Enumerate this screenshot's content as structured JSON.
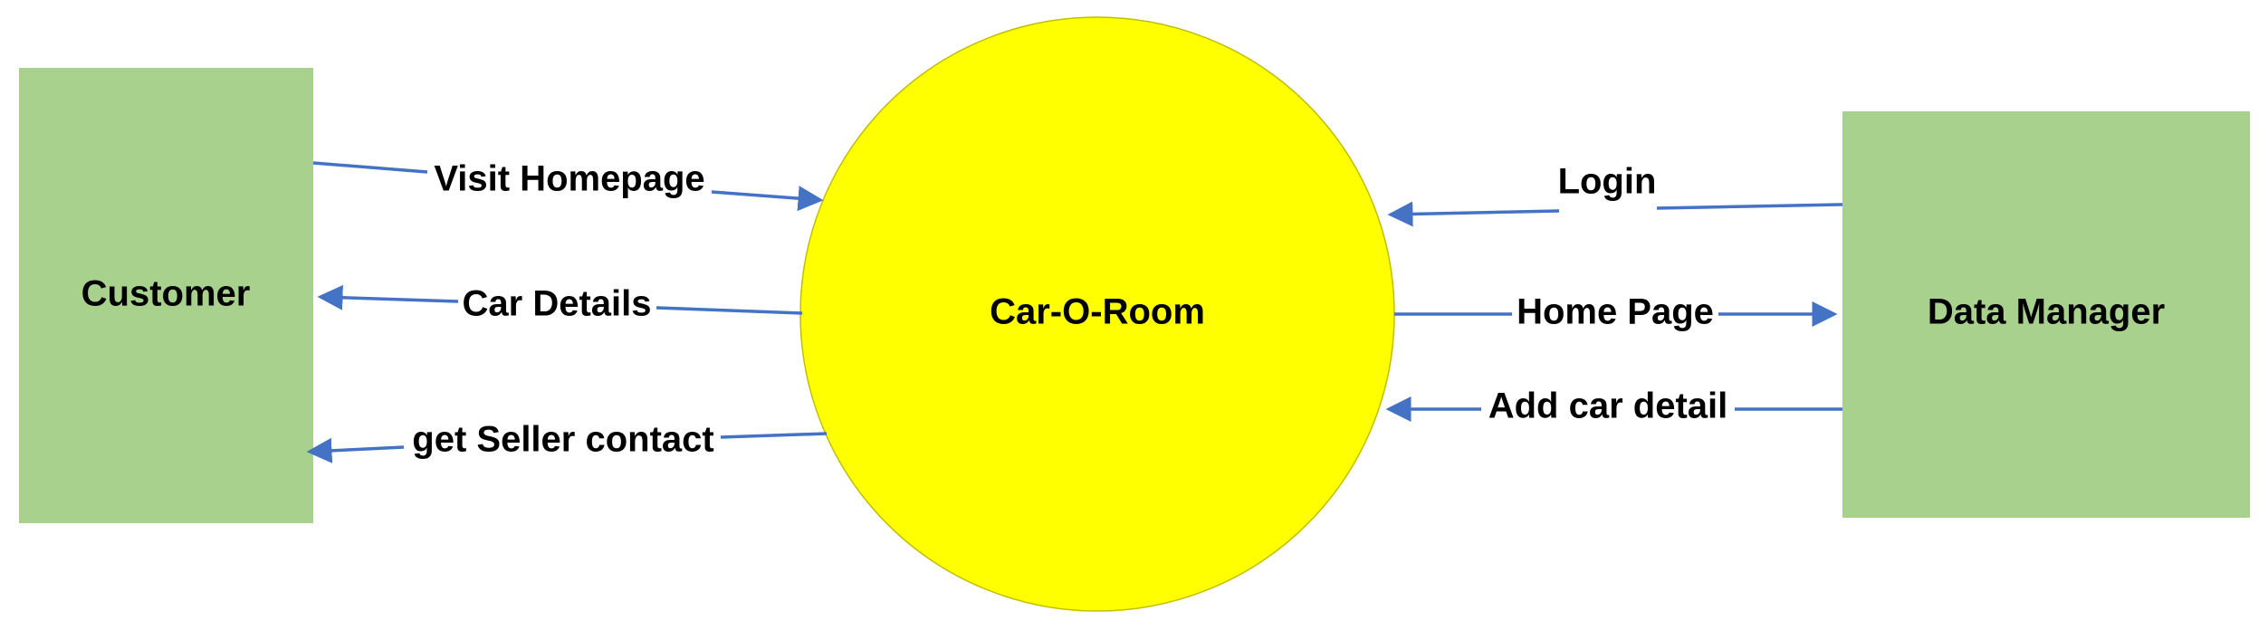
{
  "colors": {
    "entity_fill": "#a9d18e",
    "process_fill": "#ffff00",
    "process_stroke": "#bfbf00",
    "flow_color": "#4472c4",
    "text": "#000000",
    "background": "#ffffff"
  },
  "entities": {
    "customer": {
      "label": "Customer"
    },
    "data_manager": {
      "label": "Data Manager"
    }
  },
  "process": {
    "label": "Car-O-Room"
  },
  "flows": {
    "visit_homepage": {
      "label": "Visit Homepage",
      "from": "Customer",
      "to": "Car-O-Room"
    },
    "car_details": {
      "label": "Car Details",
      "from": "Car-O-Room",
      "to": "Customer"
    },
    "get_seller_contact": {
      "label": "get Seller contact",
      "from": "Car-O-Room",
      "to": "Customer"
    },
    "login": {
      "label": "Login",
      "from": "Data Manager",
      "to": "Car-O-Room"
    },
    "home_page": {
      "label": "Home Page",
      "from": "Car-O-Room",
      "to": "Data Manager"
    },
    "add_car_detail": {
      "label": "Add car detail",
      "from": "Data Manager",
      "to": "Car-O-Room"
    }
  }
}
